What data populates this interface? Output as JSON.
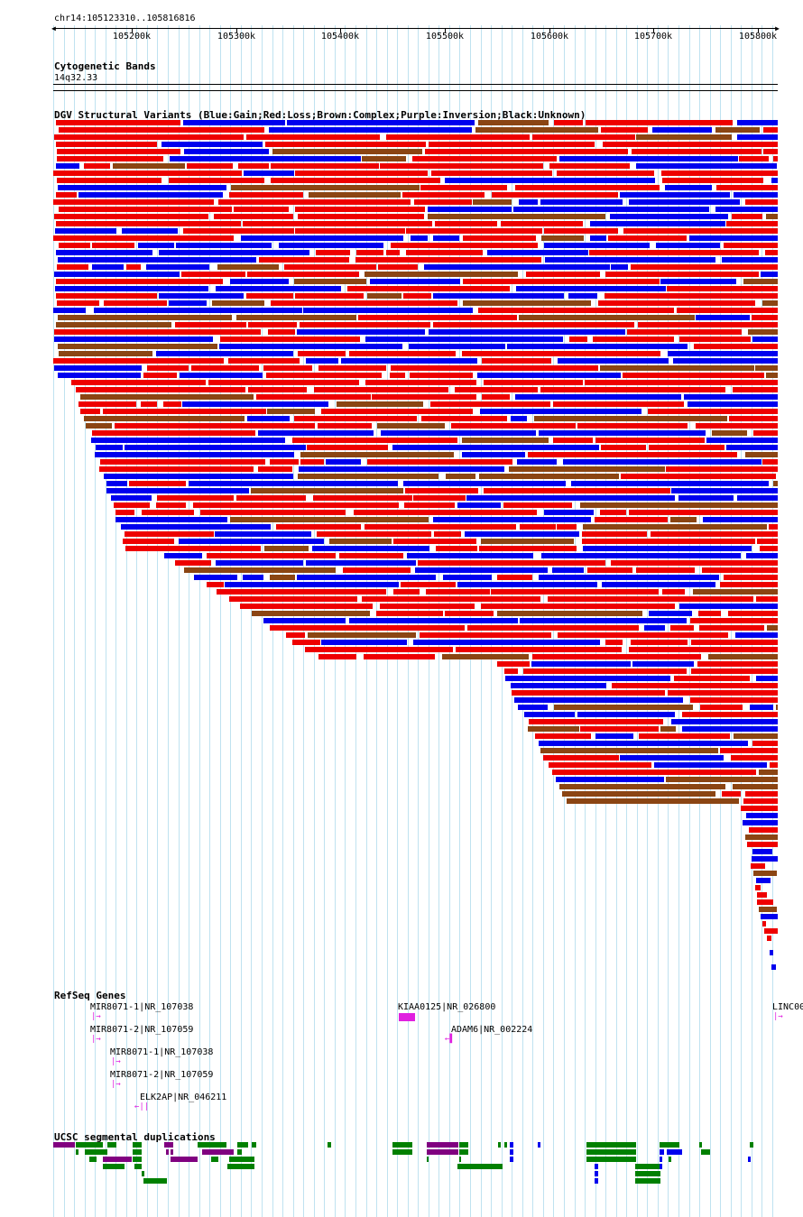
{
  "location": "chr14:105123310..105816816",
  "ruler": {
    "ticks": [
      "105200k",
      "105300k",
      "105400k",
      "105500k",
      "105600k",
      "105700k",
      "105800k"
    ]
  },
  "cytoband": {
    "title": "Cytogenetic Bands",
    "band": "14q32.33"
  },
  "dgv": {
    "title": "DGV Structural Variants (Blue:Gain;Red:Loss;Brown:Complex;Purple:Inversion;Black:Unknown)",
    "colors": {
      "gain": "#0000ee",
      "loss": "#ee0000",
      "complex": "#8b4513",
      "inversion": "#800080",
      "unknown": "#000000"
    }
  },
  "refseq": {
    "title": "RefSeq Genes",
    "genes": [
      {
        "label": "MIR8071-1|NR_107038",
        "strand": "+"
      },
      {
        "label": "MIR8071-2|NR_107059",
        "strand": "+"
      },
      {
        "label": "MIR8071-1|NR_107038",
        "strand": "+"
      },
      {
        "label": "MIR8071-2|NR_107059",
        "strand": "+"
      },
      {
        "label": "ELK2AP|NR_046211",
        "strand": "-"
      },
      {
        "label": "KIAA0125|NR_026800",
        "strand": "+"
      },
      {
        "label": "ADAM6|NR_002224",
        "strand": "-"
      },
      {
        "label": "LINC00",
        "strand": "+"
      }
    ]
  },
  "segdup": {
    "title": "UCSC segmental duplications",
    "colors": {
      "green": "#008000",
      "purple": "#800080",
      "blue": "#0000ee"
    }
  }
}
